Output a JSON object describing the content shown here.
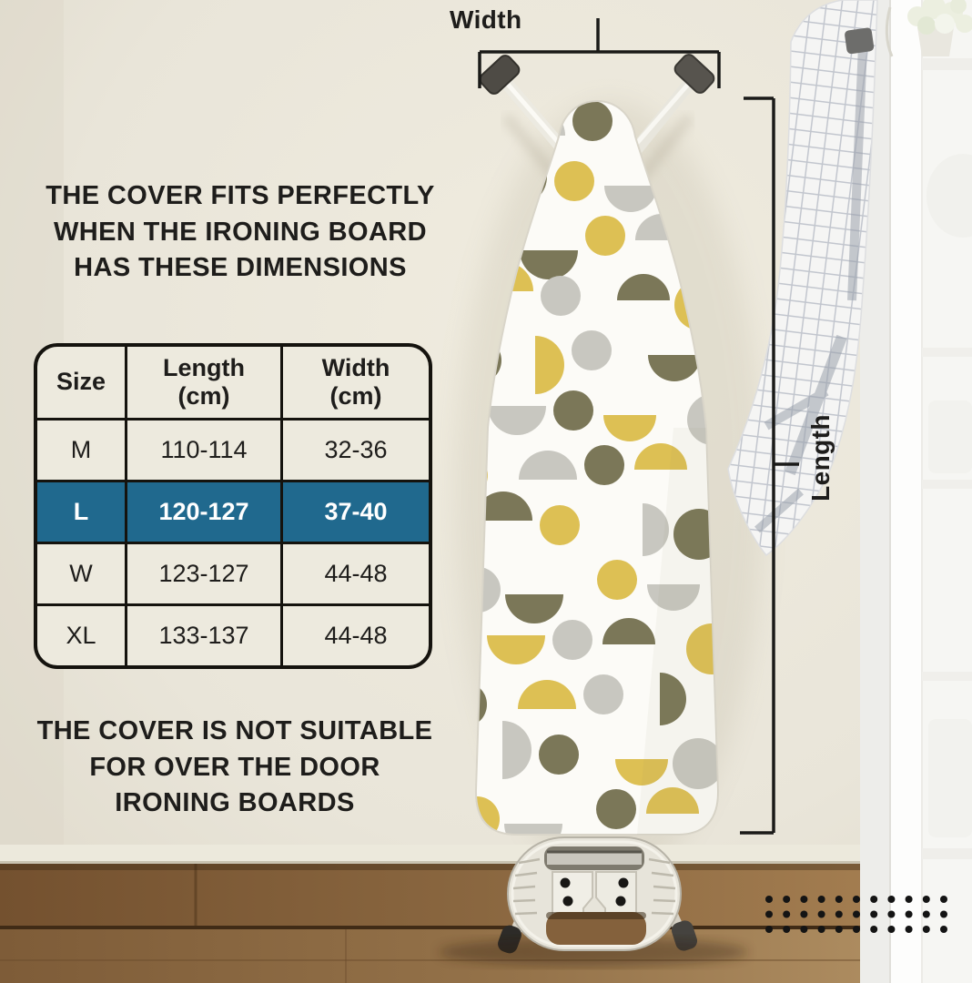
{
  "headline_top": "THE COVER FITS PERFECTLY\nWHEN THE IRONING BOARD\nHAS THESE DIMENSIONS",
  "headline_bottom": "THE COVER IS NOT SUITABLE\nFOR OVER THE DOOR\nIRONING BOARDS",
  "measurements": {
    "width_label": "Width",
    "length_label": "Length"
  },
  "size_table": {
    "headers": [
      "Size",
      "Length\n(cm)",
      "Width\n(cm)"
    ],
    "rows": [
      {
        "size": "M",
        "length": "110-114",
        "width": "32-36",
        "highlighted": false
      },
      {
        "size": "L",
        "length": "120-127",
        "width": "37-40",
        "highlighted": true
      },
      {
        "size": "W",
        "length": "123-127",
        "width": "44-48",
        "highlighted": false
      },
      {
        "size": "XL",
        "length": "133-137",
        "width": "44-48",
        "highlighted": false
      }
    ],
    "highlighted_size": "L"
  },
  "colors": {
    "accent_teal": "#20698e",
    "pattern_yellow": "#ddc054",
    "pattern_grey": "#c8c7c0",
    "pattern_olive": "#7b7758",
    "text_dark": "#1e1d1b",
    "table_line": "#15130e"
  },
  "decorations": {
    "dot_grid": {
      "rows": 3,
      "cols": 11
    }
  }
}
